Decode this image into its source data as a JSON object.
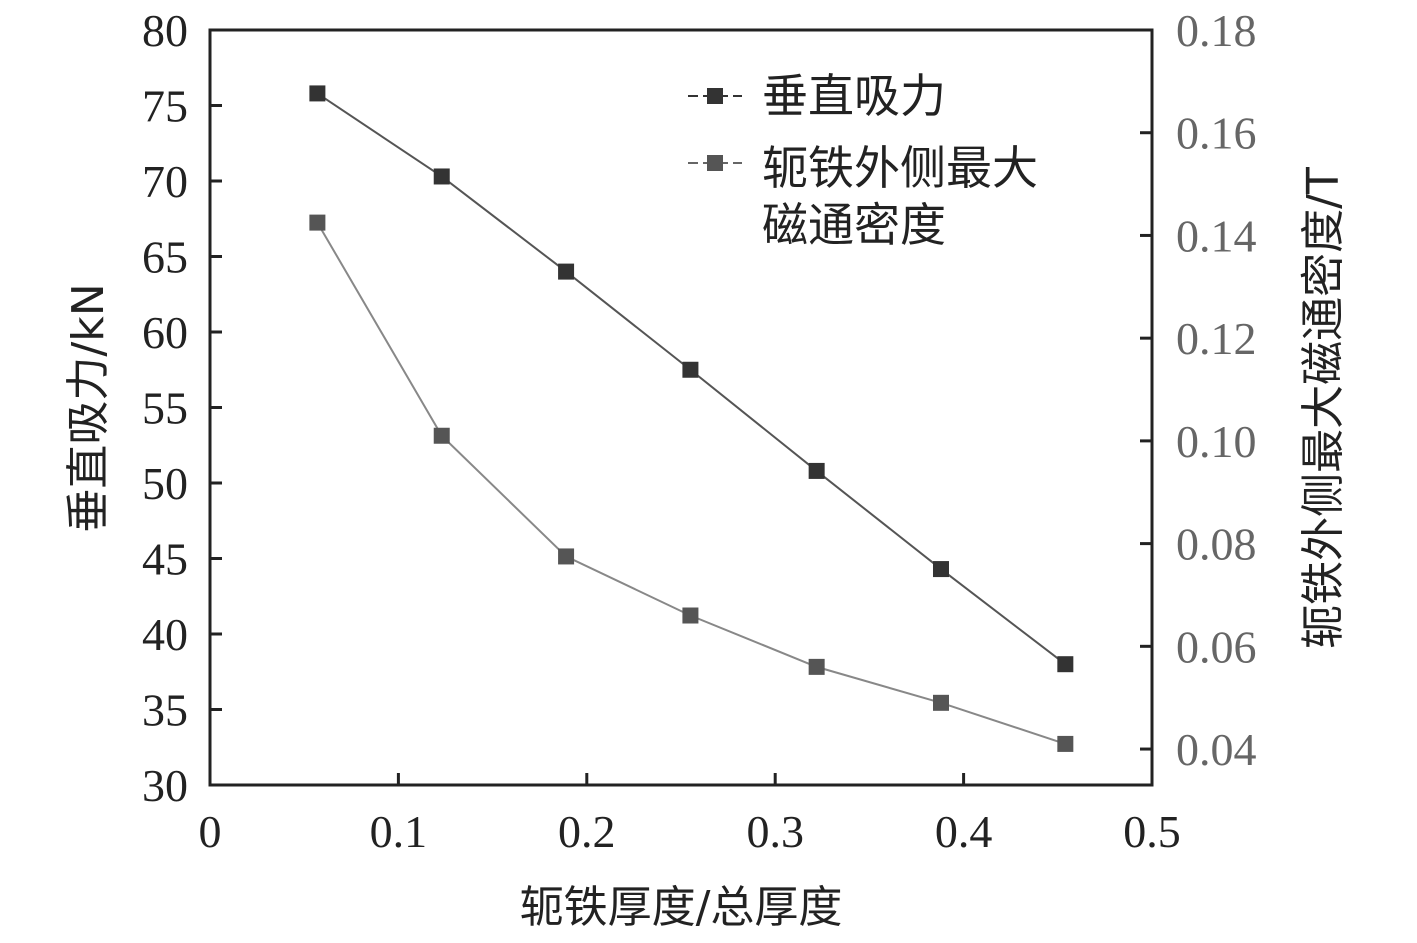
{
  "chart_data": {
    "type": "line",
    "xlabel": "轭铁厚度/总厚度",
    "ylabel_left": "垂直吸力/kN",
    "ylabel_right": "轭铁外侧最大磁通密度/T",
    "x_ticks": [
      "0",
      "0.1",
      "0.2",
      "0.3",
      "0.4",
      "0.5"
    ],
    "y_left_ticks": [
      "30",
      "35",
      "40",
      "45",
      "50",
      "55",
      "60",
      "65",
      "70",
      "75",
      "80"
    ],
    "y_right_ticks": [
      "0.04",
      "0.06",
      "0.08",
      "0.10",
      "0.12",
      "0.14",
      "0.16",
      "0.18"
    ],
    "xlim": [
      0,
      0.5
    ],
    "ylim_left": [
      30,
      80
    ],
    "ylim_right": [
      0.033,
      0.18
    ],
    "grid": false,
    "legend_position": "top-right",
    "series": [
      {
        "name": "垂直吸力",
        "axis": "left",
        "color": "#333333",
        "x": [
          0.057,
          0.123,
          0.189,
          0.255,
          0.322,
          0.388,
          0.454
        ],
        "y": [
          75.8,
          70.3,
          64.0,
          57.5,
          50.8,
          44.3,
          38.0
        ]
      },
      {
        "name_lines": [
          "轭铁外侧最大",
          "磁通密度"
        ],
        "axis": "right",
        "color": "#555555",
        "x": [
          0.057,
          0.123,
          0.189,
          0.255,
          0.322,
          0.388,
          0.454
        ],
        "y": [
          0.1425,
          0.101,
          0.0775,
          0.066,
          0.056,
          0.049,
          0.041
        ]
      }
    ]
  }
}
